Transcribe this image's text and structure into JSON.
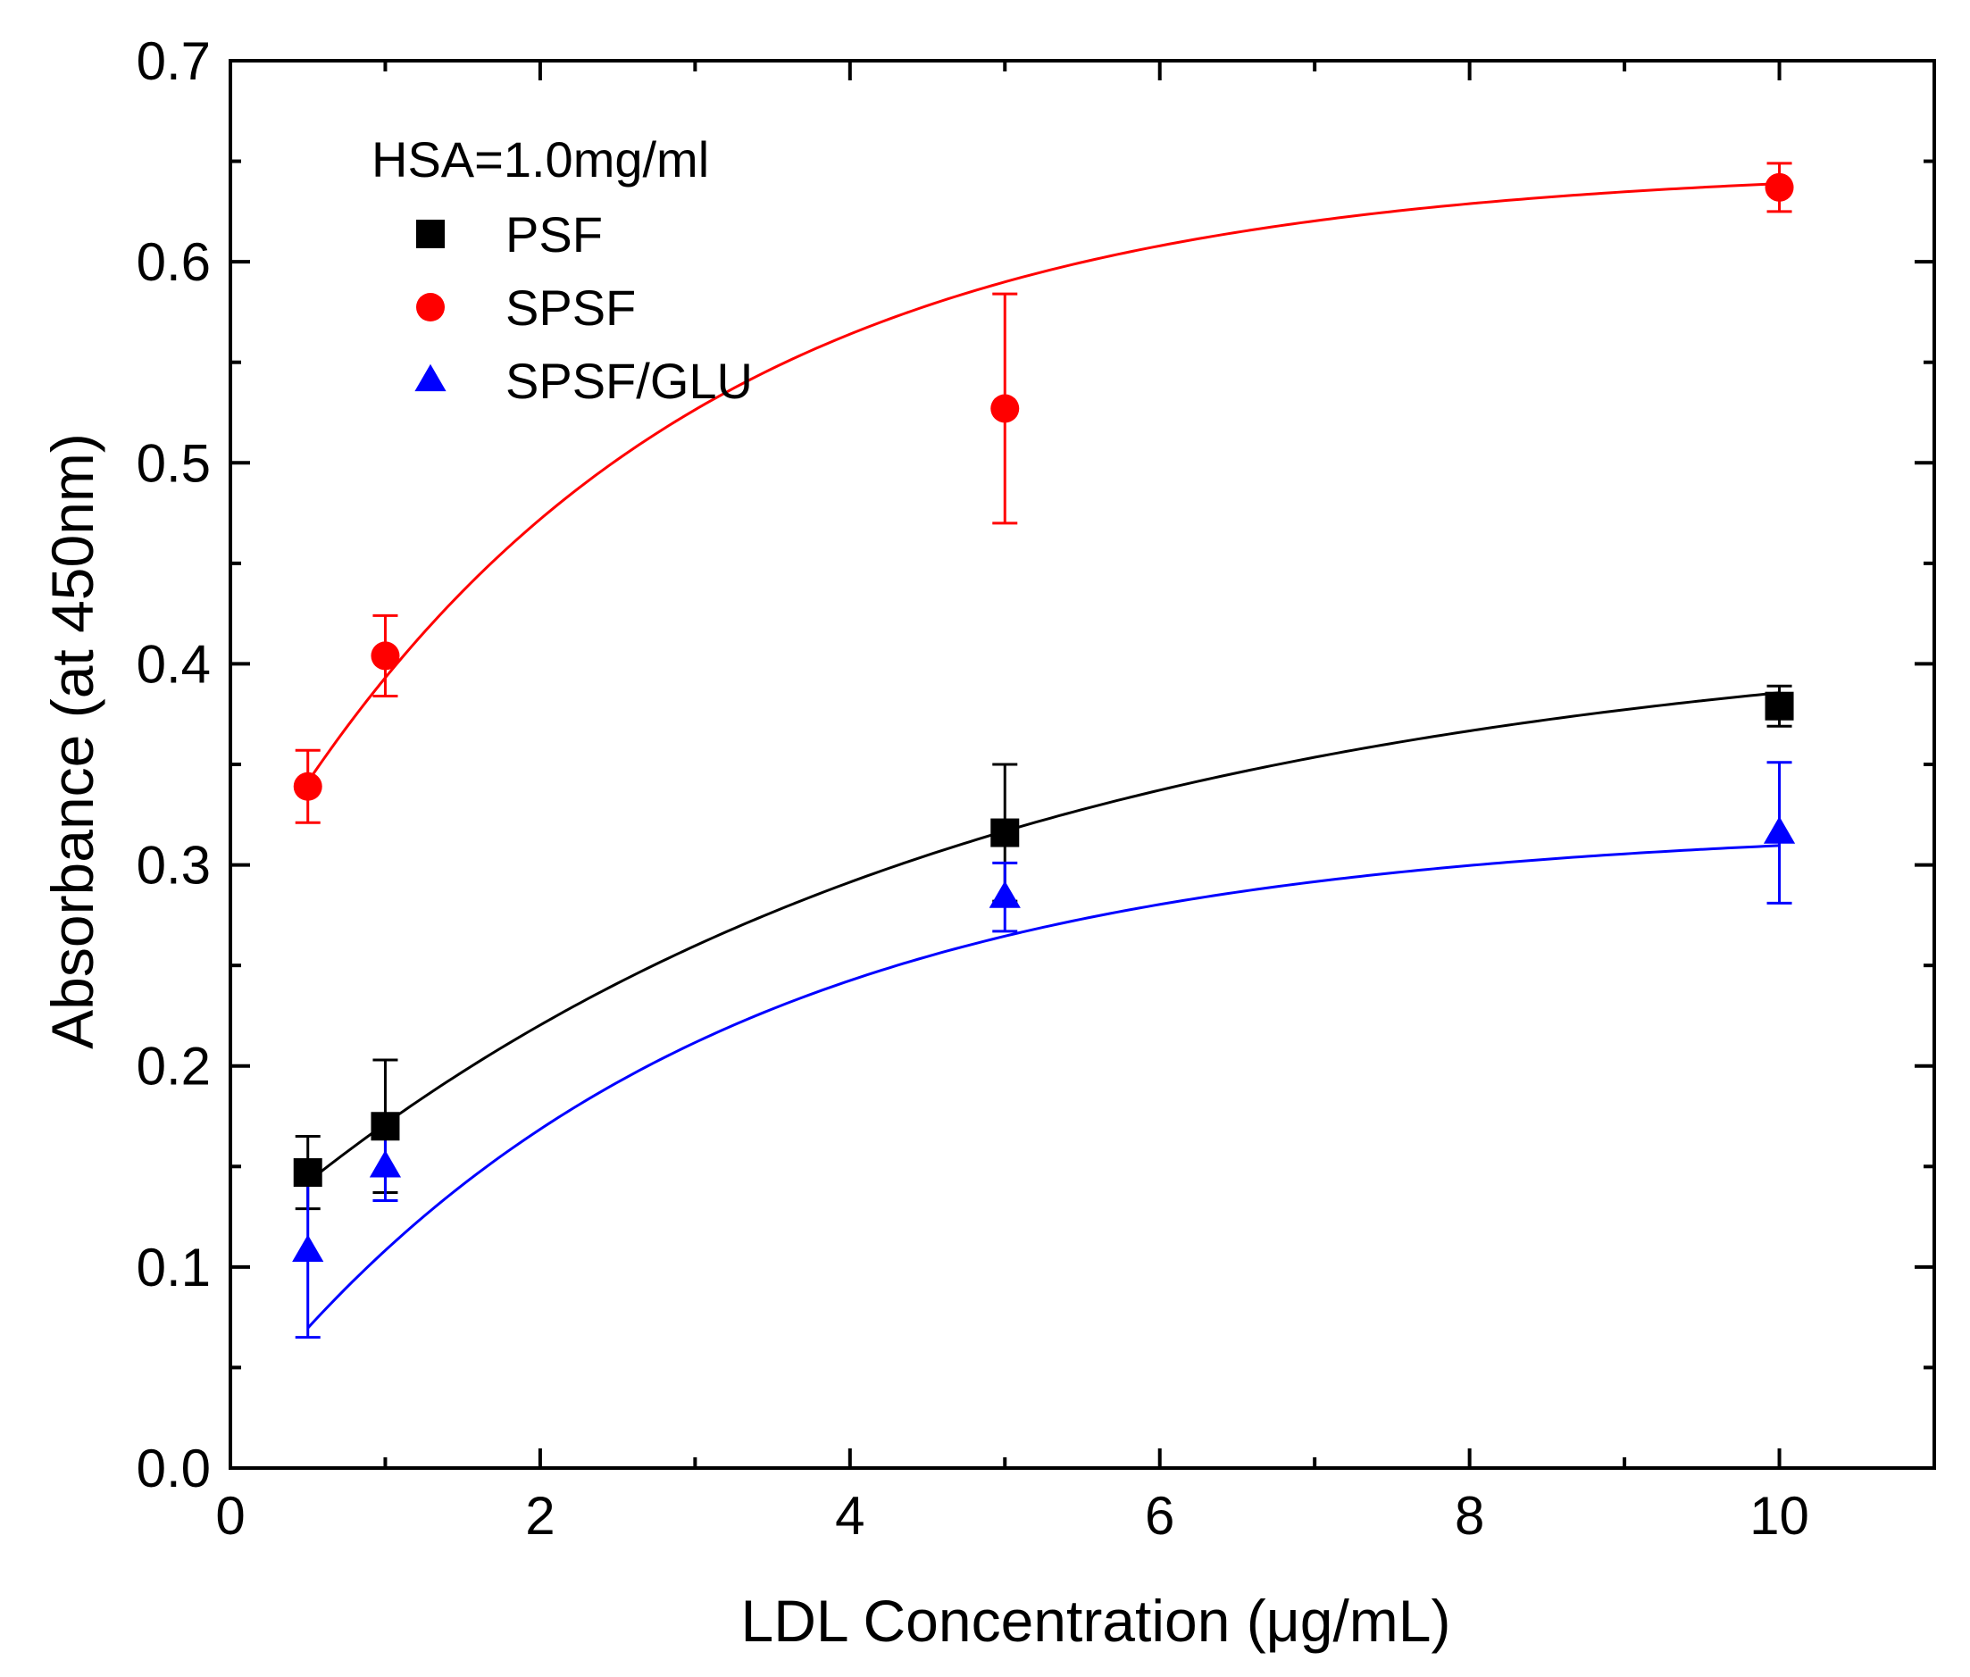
{
  "chart_data": {
    "type": "scatter",
    "title": "",
    "xlabel": "LDL Concentration (μg/mL)",
    "ylabel": "Absorbance (at 450nm)",
    "xlim": [
      0,
      11
    ],
    "ylim": [
      0.0,
      0.7
    ],
    "x_ticks": [
      0,
      2,
      4,
      6,
      8,
      10
    ],
    "x_tick_labels": [
      "0",
      "2",
      "4",
      "6",
      "8",
      "10"
    ],
    "y_ticks": [
      0.0,
      0.1,
      0.2,
      0.3,
      0.4,
      0.5,
      0.6,
      0.7
    ],
    "y_tick_labels": [
      "0.0",
      "0.1",
      "0.2",
      "0.3",
      "0.4",
      "0.5",
      "0.6",
      "0.7"
    ],
    "grid": false,
    "legend": {
      "title": "HSA=1.0mg/ml",
      "position": "top-left"
    },
    "series": [
      {
        "name": "PSF",
        "marker": "square",
        "color": "#000000",
        "x": [
          0.5,
          1,
          5,
          10
        ],
        "y": [
          0.147,
          0.17,
          0.316,
          0.379
        ],
        "error": [
          0.018,
          0.033,
          0.034,
          0.01
        ],
        "fit": {
          "model": "exponential-saturation",
          "a": 0.42,
          "b": 0.31,
          "k": 0.22
        }
      },
      {
        "name": "SPSF",
        "marker": "circle",
        "color": "#ff0000",
        "x": [
          0.5,
          1,
          5,
          10
        ],
        "y": [
          0.339,
          0.404,
          0.527,
          0.637
        ],
        "error": [
          0.018,
          0.02,
          0.057,
          0.012
        ],
        "fit": {
          "model": "exponential-saturation",
          "a": 0.648,
          "b": 0.369,
          "k": 0.37
        }
      },
      {
        "name": "SPSF/GLU",
        "marker": "triangle",
        "color": "#0000ff",
        "x": [
          0.5,
          1,
          5,
          10
        ],
        "y": [
          0.108,
          0.15,
          0.284,
          0.316
        ],
        "error": [
          0.043,
          0.017,
          0.017,
          0.035
        ],
        "fit": {
          "model": "exponential-saturation",
          "a": 0.32,
          "b": 0.296,
          "k": 0.335
        }
      }
    ]
  }
}
